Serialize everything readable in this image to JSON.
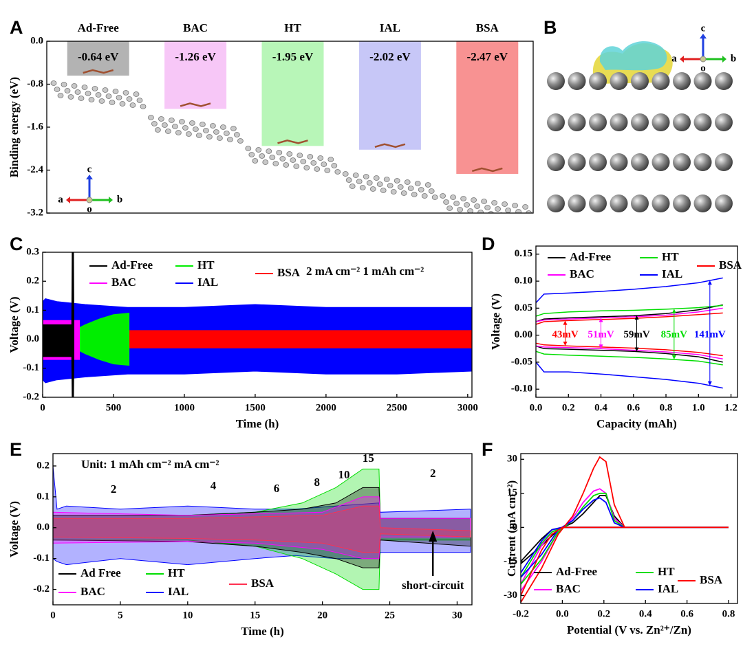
{
  "panel_labels": [
    "A",
    "B",
    "C",
    "D",
    "E",
    "F"
  ],
  "crystal_axes": {
    "a": "a",
    "b": "b",
    "c": "c",
    "o": "o"
  },
  "chart_data": [
    {
      "type": "bar",
      "ylabel": "Binding energy (eV)",
      "categories": [
        "Ad-Free",
        "BAC",
        "HT",
        "IAL",
        "BSA"
      ],
      "values": [
        -0.64,
        -1.26,
        -1.95,
        -2.02,
        -2.47
      ],
      "value_labels": [
        "-0.64 eV",
        "-1.26 eV",
        "-1.95 eV",
        "-2.02 eV",
        "-2.47 eV"
      ],
      "colors": [
        "#a6a6a6",
        "#f6bdf6",
        "#abf5ab",
        "#bdbdf6",
        "#f77f7f"
      ],
      "ylim": [
        -3.2,
        0
      ],
      "yticks": [
        {
          "value": 0,
          "label": "0.0"
        },
        -0.8,
        -1.6,
        -2.4,
        -3.2
      ]
    },
    {
      "type": "band",
      "xlabel": "Time (h)",
      "ylabel": "Voltage (V)",
      "annotation": "2 mA cm⁻² 1 mAh cm⁻²",
      "fill_opacity": 1,
      "xlim": [
        0,
        3030
      ],
      "xticks": [
        0,
        500,
        1000,
        1500,
        2000,
        2500,
        3000
      ],
      "ylim": [
        -0.2,
        0.3
      ],
      "yticks": [
        -0.2,
        -0.1,
        {
          "value": 0,
          "label": "0.0"
        },
        0.1,
        0.2,
        0.3
      ],
      "series": [
        {
          "name": "IAL",
          "color": "#0000ff",
          "x": [
            0,
            20,
            100,
            300,
            600,
            1000,
            1500,
            2000,
            2500,
            3030
          ],
          "upper": [
            0.13,
            0.14,
            0.13,
            0.12,
            0.11,
            0.11,
            0.12,
            0.11,
            0.11,
            0.11
          ],
          "lower": [
            -0.14,
            -0.15,
            -0.14,
            -0.13,
            -0.12,
            -0.12,
            -0.11,
            -0.12,
            -0.12,
            -0.11
          ]
        },
        {
          "name": "BSA",
          "color": "#ff0000",
          "x": [
            0,
            3030
          ],
          "upper": [
            0.03,
            0.03
          ],
          "lower": [
            -0.03,
            -0.03
          ]
        },
        {
          "name": "HT",
          "color": "#00ee00",
          "x": [
            260,
            300,
            400,
            500,
            610
          ],
          "upper": [
            0.04,
            0.05,
            0.07,
            0.085,
            0.09
          ],
          "lower": [
            -0.04,
            -0.05,
            -0.07,
            -0.085,
            -0.09
          ]
        },
        {
          "name": "BAC",
          "color": "#ff00ff",
          "x": [
            0,
            260
          ],
          "upper": [
            0.065,
            0.065
          ],
          "lower": [
            -0.07,
            -0.07
          ]
        },
        {
          "name": "Ad-Free",
          "color": "#000000",
          "x": [
            0,
            205,
            208,
            218,
            221
          ],
          "upper": [
            0.05,
            0.05,
            0.3,
            0.3,
            0.05
          ],
          "lower": [
            -0.06,
            -0.06,
            -0.2,
            -0.2,
            -0.06
          ]
        }
      ]
    },
    {
      "type": "line",
      "xlabel": "Capacity (mAh)",
      "ylabel": "Voltage (V)",
      "xlim": [
        0,
        1.24
      ],
      "xticks": [
        {
          "value": 0,
          "label": "0.0"
        },
        0.2,
        0.4,
        0.6,
        0.8,
        {
          "value": 1,
          "label": "1.0"
        },
        1.2
      ],
      "ylim": [
        -0.115,
        0.165
      ],
      "yticks": [
        {
          "value": -0.1,
          "label": "-0.10"
        },
        -0.05,
        {
          "value": 0,
          "label": "0.00"
        },
        0.05,
        {
          "value": 0.1,
          "label": "0.10"
        },
        0.15
      ],
      "series": [
        {
          "name": "Ad-Free",
          "color": "#000000",
          "x": [
            0,
            0.05,
            0.2,
            0.4,
            0.6,
            0.8,
            1.0,
            1.15
          ],
          "charge": [
            0.025,
            0.03,
            0.032,
            0.034,
            0.036,
            0.04,
            0.047,
            0.056
          ],
          "discharge": [
            -0.02,
            -0.025,
            -0.026,
            -0.028,
            -0.03,
            -0.034,
            -0.04,
            -0.05
          ]
        },
        {
          "name": "BAC",
          "color": "#ff00ff",
          "x": [
            0,
            0.05,
            0.2,
            0.4,
            0.6,
            0.8,
            1.0,
            1.15
          ],
          "charge": [
            0.025,
            0.028,
            0.03,
            0.032,
            0.034,
            0.037,
            0.043,
            0.05
          ],
          "discharge": [
            -0.02,
            -0.022,
            -0.023,
            -0.025,
            -0.028,
            -0.031,
            -0.036,
            -0.044
          ]
        },
        {
          "name": "HT",
          "color": "#00dd00",
          "x": [
            0,
            0.05,
            0.2,
            0.4,
            0.6,
            0.8,
            1.0,
            1.15
          ],
          "charge": [
            0.035,
            0.04,
            0.043,
            0.045,
            0.046,
            0.048,
            0.051,
            0.055
          ],
          "discharge": [
            -0.03,
            -0.035,
            -0.037,
            -0.039,
            -0.041,
            -0.044,
            -0.048,
            -0.055
          ]
        },
        {
          "name": "IAL",
          "color": "#0000ff",
          "x": [
            0,
            0.05,
            0.2,
            0.4,
            0.6,
            0.8,
            1.0,
            1.15
          ],
          "charge": [
            0.06,
            0.076,
            0.078,
            0.081,
            0.085,
            0.09,
            0.097,
            0.106
          ],
          "discharge": [
            -0.05,
            -0.068,
            -0.068,
            -0.072,
            -0.077,
            -0.082,
            -0.089,
            -0.098
          ]
        },
        {
          "name": "BSA",
          "color": "#ff0000",
          "x": [
            0,
            0.05,
            0.2,
            0.4,
            0.6,
            0.8,
            1.0,
            1.15
          ],
          "charge": [
            0.02,
            0.025,
            0.027,
            0.029,
            0.031,
            0.034,
            0.038,
            0.041
          ],
          "discharge": [
            -0.015,
            -0.018,
            -0.02,
            -0.022,
            -0.024,
            -0.027,
            -0.032,
            -0.038
          ]
        }
      ],
      "annotations": [
        {
          "text": "43mV",
          "x": 0.18,
          "color": "#ff0000"
        },
        {
          "text": "51mV",
          "x": 0.4,
          "color": "#ff00ff"
        },
        {
          "text": "59mV",
          "x": 0.62,
          "color": "#000000"
        },
        {
          "text": "85mV",
          "x": 0.85,
          "color": "#00dd00"
        },
        {
          "text": "141mV",
          "x": 1.07,
          "color": "#0000ff"
        }
      ]
    },
    {
      "type": "band",
      "xlabel": "Time (h)",
      "ylabel": "Voltage (V)",
      "annotation": "Unit: 1 mAh cm⁻²    mA cm⁻²",
      "fill_opacity": 0.3,
      "xlim": [
        0,
        31.1
      ],
      "xticks": [
        0,
        5,
        10,
        15,
        20,
        25,
        30
      ],
      "ylim": [
        -0.25,
        0.24
      ],
      "yticks": [
        -0.2,
        -0.1,
        {
          "value": 0,
          "label": "0.0"
        },
        0.1,
        0.2
      ],
      "series": [
        {
          "name": "IAL",
          "color": "#0000ff",
          "x": [
            0,
            0.3,
            1,
            5,
            10,
            15,
            18,
            21,
            24.2,
            24.3,
            31
          ],
          "upper": [
            0.2,
            0.06,
            0.07,
            0.06,
            0.07,
            0.06,
            0.06,
            0.07,
            0.08,
            0.05,
            0.06
          ],
          "lower": [
            -0.1,
            -0.11,
            -0.12,
            -0.1,
            -0.12,
            -0.1,
            -0.09,
            -0.1,
            -0.1,
            -0.08,
            -0.08
          ]
        },
        {
          "name": "HT",
          "color": "#00dd00",
          "x": [
            0,
            10,
            15,
            18.5,
            21,
            23,
            24.2,
            24.3,
            31
          ],
          "upper": [
            0.04,
            0.04,
            0.05,
            0.08,
            0.13,
            0.19,
            0.19,
            0.03,
            0.03
          ],
          "lower": [
            -0.04,
            -0.04,
            -0.06,
            -0.1,
            -0.15,
            -0.2,
            -0.2,
            -0.04,
            -0.04
          ]
        },
        {
          "name": "Ad Free",
          "color": "#000000",
          "x": [
            0,
            10,
            15,
            18.5,
            21,
            23,
            24.2,
            24.3,
            31
          ],
          "upper": [
            0.04,
            0.04,
            0.05,
            0.06,
            0.08,
            0.13,
            0.13,
            0.03,
            0.03
          ],
          "lower": [
            -0.04,
            -0.045,
            -0.06,
            -0.08,
            -0.1,
            -0.13,
            -0.13,
            -0.04,
            -0.06
          ]
        },
        {
          "name": "BAC",
          "color": "#ff00ff",
          "x": [
            0,
            10,
            15,
            20,
            23,
            24.2,
            24.3,
            31
          ],
          "upper": [
            0.05,
            0.04,
            0.045,
            0.05,
            0.1,
            0.1,
            0.03,
            0.03
          ],
          "lower": [
            -0.05,
            -0.045,
            -0.05,
            -0.07,
            -0.1,
            -0.1,
            -0.03,
            -0.03
          ]
        },
        {
          "name": "BSA",
          "color": "#ff3050",
          "x": [
            0,
            10,
            15,
            20,
            23,
            24.2,
            24.3,
            31
          ],
          "upper": [
            0.03,
            0.03,
            0.035,
            0.04,
            0.07,
            0.07,
            0,
            -0.01
          ],
          "lower": [
            -0.03,
            -0.035,
            -0.04,
            -0.05,
            -0.08,
            -0.08,
            -0.02,
            -0.03
          ]
        }
      ],
      "rate_labels": [
        {
          "text": "2",
          "x": 4.5
        },
        {
          "text": "4",
          "x": 11.9
        },
        {
          "text": "6",
          "x": 16.6
        },
        {
          "text": "8",
          "x": 19.6
        },
        {
          "text": "10",
          "x": 21.6
        },
        {
          "text": "15",
          "x": 23.4
        },
        {
          "text": "2",
          "x": 28.2
        }
      ],
      "short_circuit": {
        "text": "short-circuit",
        "x": 28.2
      }
    },
    {
      "type": "line",
      "xlabel": "Potential (V vs. Zn²⁺/Zn)",
      "ylabel": "Current (mA cm⁻²)",
      "xlim": [
        -0.2,
        0.843
      ],
      "xticks": [
        -0.2,
        {
          "value": 0,
          "label": "0.0"
        },
        0.2,
        0.4,
        0.6,
        0.8
      ],
      "ylim": [
        -33.5,
        32.5
      ],
      "yticks": [
        -30,
        -15,
        0,
        15,
        30
      ],
      "x": [
        -0.2,
        -0.1,
        -0.02,
        0.05,
        0.1,
        0.15,
        0.18,
        0.21,
        0.25,
        0.3,
        0.8,
        0.3,
        0,
        -0.05,
        -0.1,
        -0.2
      ],
      "series": [
        {
          "name": "Ad-Free",
          "color": "#000000",
          "values": [
            -16,
            -8,
            -1,
            2,
            6,
            11,
            14,
            14,
            5,
            0,
            0,
            0,
            0,
            -1,
            -5,
            -15
          ]
        },
        {
          "name": "BAC",
          "color": "#ff00ff",
          "values": [
            -28,
            -15,
            -2,
            4,
            11,
            16,
            17,
            15,
            4,
            0,
            0,
            0,
            0,
            -2,
            -8,
            -25
          ]
        },
        {
          "name": "HT",
          "color": "#00dd00",
          "values": [
            -25,
            -14,
            -2,
            3,
            9,
            14,
            15,
            15,
            3,
            0,
            0,
            0,
            0,
            -2,
            -7,
            -22
          ]
        },
        {
          "name": "IAL",
          "color": "#0000ff",
          "values": [
            -22,
            -12,
            -1,
            3,
            8,
            12,
            13,
            11,
            2,
            0,
            0,
            0,
            0,
            -1,
            -6,
            -20
          ]
        },
        {
          "name": "BSA",
          "color": "#ff0000",
          "values": [
            -33,
            -18,
            -3,
            5,
            15,
            26,
            31,
            29,
            10,
            0,
            0,
            0,
            0,
            -3,
            -10,
            -30
          ]
        }
      ]
    }
  ]
}
